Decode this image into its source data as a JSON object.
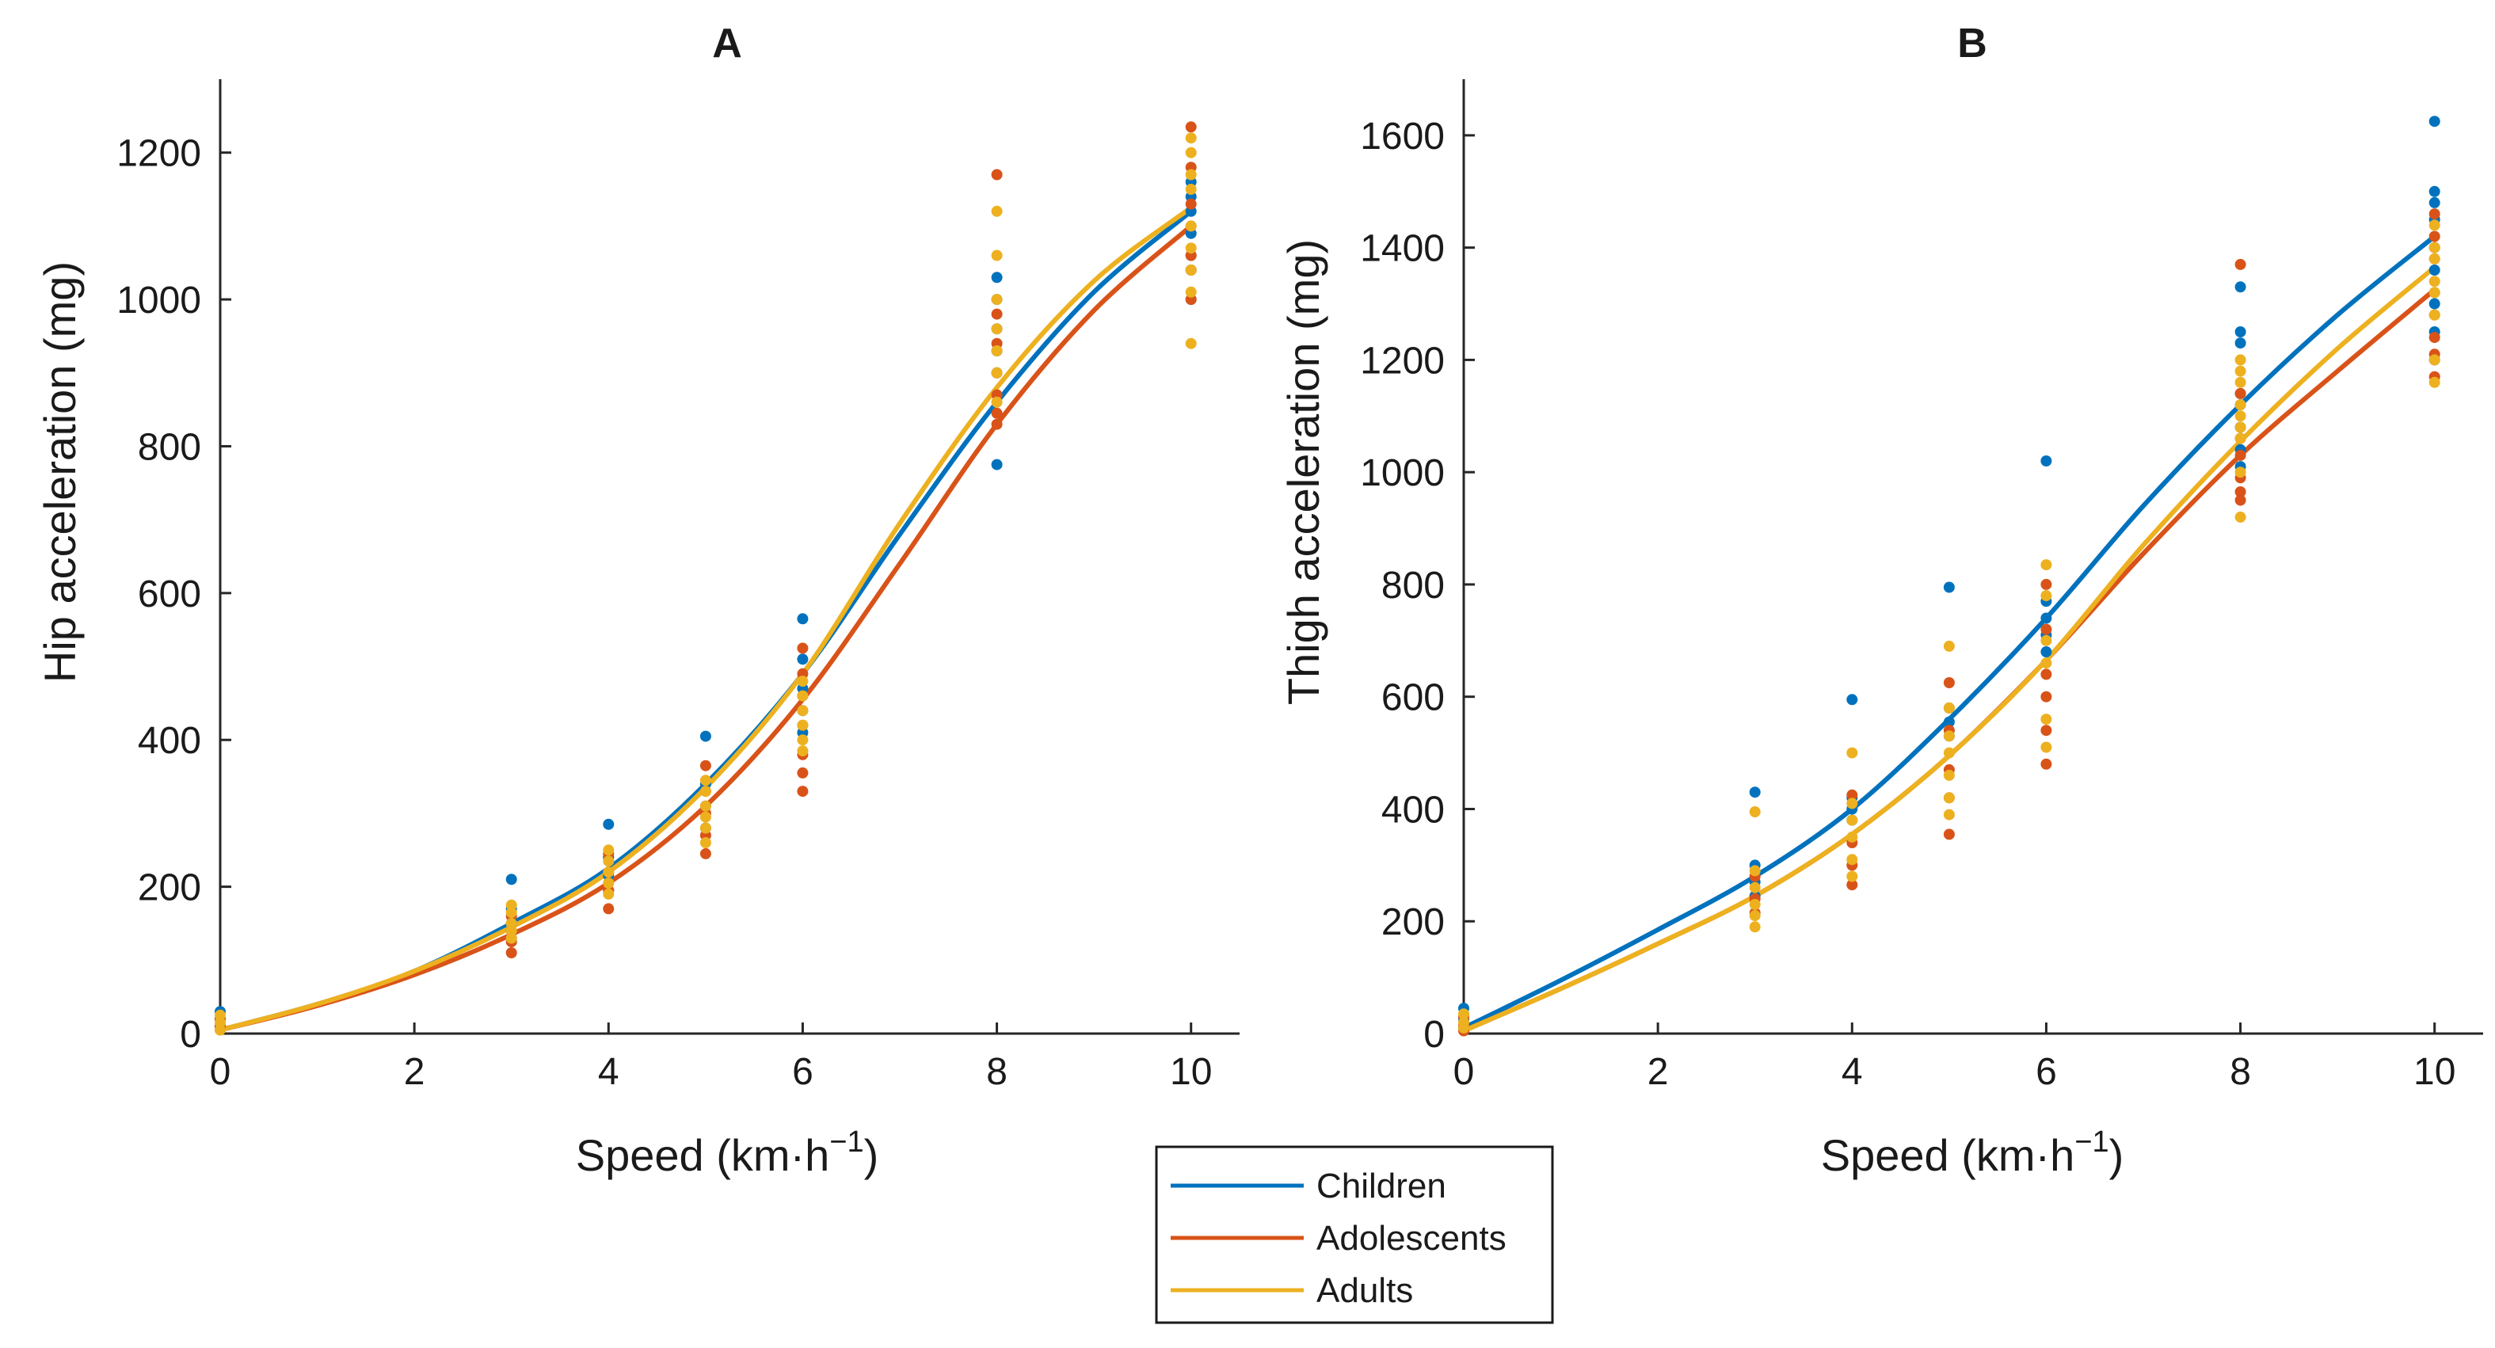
{
  "colors": {
    "Children": "#0072BD",
    "Adolescents": "#D95319",
    "Adults": "#EDB120"
  },
  "legend": {
    "entries": [
      "Children",
      "Adolescents",
      "Adults"
    ]
  },
  "chart_data": [
    {
      "type": "scatter+line",
      "title": "A",
      "xlabel": "Speed (km·h",
      "xlabel_sup": "−1",
      "xlabel_end": ")",
      "ylabel": "Hip acceleration (mg)",
      "xlim": [
        0,
        10.5
      ],
      "ylim": [
        0,
        1300
      ],
      "xticks": [
        0,
        2,
        4,
        6,
        8,
        10
      ],
      "yticks": [
        0,
        200,
        400,
        600,
        800,
        1000,
        1200
      ],
      "scatter": {
        "Children": [
          [
            0,
            30
          ],
          [
            0,
            20
          ],
          [
            0,
            10
          ],
          [
            3,
            210
          ],
          [
            3,
            170
          ],
          [
            3,
            150
          ],
          [
            3,
            130
          ],
          [
            4,
            285
          ],
          [
            4,
            240
          ],
          [
            4,
            215
          ],
          [
            4,
            195
          ],
          [
            5,
            405
          ],
          [
            5,
            340
          ],
          [
            5,
            310
          ],
          [
            5,
            280
          ],
          [
            6,
            565
          ],
          [
            6,
            510
          ],
          [
            6,
            470
          ],
          [
            6,
            440
          ],
          [
            6,
            410
          ],
          [
            8,
            1030
          ],
          [
            8,
            1000
          ],
          [
            8,
            960
          ],
          [
            8,
            930
          ],
          [
            8,
            900
          ],
          [
            8,
            775
          ],
          [
            10,
            1160
          ],
          [
            10,
            1140
          ],
          [
            10,
            1120
          ],
          [
            10,
            1090
          ],
          [
            10,
            1060
          ],
          [
            10,
            1040
          ],
          [
            10,
            1000
          ]
        ],
        "Adolescents": [
          [
            0,
            20
          ],
          [
            0,
            10
          ],
          [
            0,
            5
          ],
          [
            3,
            160
          ],
          [
            3,
            140
          ],
          [
            3,
            125
          ],
          [
            3,
            110
          ],
          [
            4,
            245
          ],
          [
            4,
            220
          ],
          [
            4,
            195
          ],
          [
            4,
            170
          ],
          [
            5,
            365
          ],
          [
            5,
            330
          ],
          [
            5,
            300
          ],
          [
            5,
            270
          ],
          [
            5,
            245
          ],
          [
            6,
            525
          ],
          [
            6,
            490
          ],
          [
            6,
            460
          ],
          [
            6,
            420
          ],
          [
            6,
            380
          ],
          [
            6,
            355
          ],
          [
            6,
            330
          ],
          [
            8,
            1170
          ],
          [
            8,
            980
          ],
          [
            8,
            940
          ],
          [
            8,
            900
          ],
          [
            8,
            870
          ],
          [
            8,
            845
          ],
          [
            8,
            830
          ],
          [
            10,
            1235
          ],
          [
            10,
            1180
          ],
          [
            10,
            1130
          ],
          [
            10,
            1100
          ],
          [
            10,
            1060
          ],
          [
            10,
            1040
          ],
          [
            10,
            1000
          ]
        ],
        "Adults": [
          [
            0,
            25
          ],
          [
            0,
            15
          ],
          [
            0,
            5
          ],
          [
            3,
            175
          ],
          [
            3,
            165
          ],
          [
            3,
            150
          ],
          [
            3,
            140
          ],
          [
            3,
            130
          ],
          [
            4,
            250
          ],
          [
            4,
            235
          ],
          [
            4,
            220
          ],
          [
            4,
            205
          ],
          [
            4,
            190
          ],
          [
            5,
            345
          ],
          [
            5,
            330
          ],
          [
            5,
            310
          ],
          [
            5,
            295
          ],
          [
            5,
            280
          ],
          [
            5,
            260
          ],
          [
            6,
            480
          ],
          [
            6,
            460
          ],
          [
            6,
            440
          ],
          [
            6,
            420
          ],
          [
            6,
            400
          ],
          [
            6,
            385
          ],
          [
            8,
            1120
          ],
          [
            8,
            1060
          ],
          [
            8,
            1000
          ],
          [
            8,
            960
          ],
          [
            8,
            930
          ],
          [
            8,
            900
          ],
          [
            8,
            860
          ],
          [
            10,
            1220
          ],
          [
            10,
            1200
          ],
          [
            10,
            1170
          ],
          [
            10,
            1150
          ],
          [
            10,
            1100
          ],
          [
            10,
            1070
          ],
          [
            10,
            1040
          ],
          [
            10,
            1010
          ],
          [
            10,
            940
          ]
        ]
      },
      "fits": {
        "Children": [
          [
            0,
            5
          ],
          [
            1,
            40
          ],
          [
            2,
            85
          ],
          [
            3,
            150
          ],
          [
            4,
            225
          ],
          [
            5,
            340
          ],
          [
            6,
            490
          ],
          [
            7,
            680
          ],
          [
            8,
            860
          ],
          [
            9,
            1010
          ],
          [
            10,
            1120
          ]
        ],
        "Adolescents": [
          [
            0,
            5
          ],
          [
            1,
            38
          ],
          [
            2,
            80
          ],
          [
            3,
            135
          ],
          [
            4,
            205
          ],
          [
            5,
            310
          ],
          [
            6,
            455
          ],
          [
            7,
            640
          ],
          [
            8,
            830
          ],
          [
            9,
            985
          ],
          [
            10,
            1100
          ]
        ],
        "Adults": [
          [
            0,
            5
          ],
          [
            1,
            40
          ],
          [
            2,
            85
          ],
          [
            3,
            145
          ],
          [
            4,
            220
          ],
          [
            5,
            335
          ],
          [
            6,
            490
          ],
          [
            7,
            695
          ],
          [
            8,
            880
          ],
          [
            9,
            1025
          ],
          [
            10,
            1125
          ]
        ]
      }
    },
    {
      "type": "scatter+line",
      "title": "B",
      "xlabel": "Speed (km·h",
      "xlabel_sup": "−1",
      "xlabel_end": ")",
      "ylabel": "Thigh acceleration (mg)",
      "xlim": [
        0,
        10.5
      ],
      "ylim": [
        0,
        1700
      ],
      "xticks": [
        0,
        2,
        4,
        6,
        8,
        10
      ],
      "yticks": [
        0,
        200,
        400,
        600,
        800,
        1000,
        1200,
        1400,
        1600
      ],
      "scatter": {
        "Children": [
          [
            0,
            45
          ],
          [
            0,
            25
          ],
          [
            0,
            10
          ],
          [
            3,
            430
          ],
          [
            3,
            300
          ],
          [
            3,
            270
          ],
          [
            3,
            245
          ],
          [
            4,
            595
          ],
          [
            4,
            420
          ],
          [
            4,
            400
          ],
          [
            4,
            380
          ],
          [
            5,
            795
          ],
          [
            5,
            580
          ],
          [
            5,
            555
          ],
          [
            5,
            530
          ],
          [
            6,
            1020
          ],
          [
            6,
            770
          ],
          [
            6,
            740
          ],
          [
            6,
            710
          ],
          [
            6,
            680
          ],
          [
            8,
            1330
          ],
          [
            8,
            1250
          ],
          [
            8,
            1230
          ],
          [
            8,
            1140
          ],
          [
            8,
            1120
          ],
          [
            8,
            1080
          ],
          [
            8,
            1040
          ],
          [
            8,
            1010
          ],
          [
            10,
            1625
          ],
          [
            10,
            1500
          ],
          [
            10,
            1480
          ],
          [
            10,
            1450
          ],
          [
            10,
            1400
          ],
          [
            10,
            1360
          ],
          [
            10,
            1300
          ],
          [
            10,
            1250
          ],
          [
            10,
            1200
          ]
        ],
        "Adolescents": [
          [
            0,
            30
          ],
          [
            0,
            15
          ],
          [
            0,
            5
          ],
          [
            3,
            280
          ],
          [
            3,
            240
          ],
          [
            3,
            215
          ],
          [
            4,
            425
          ],
          [
            4,
            340
          ],
          [
            4,
            300
          ],
          [
            4,
            265
          ],
          [
            5,
            625
          ],
          [
            5,
            540
          ],
          [
            5,
            470
          ],
          [
            5,
            420
          ],
          [
            5,
            355
          ],
          [
            6,
            800
          ],
          [
            6,
            720
          ],
          [
            6,
            640
          ],
          [
            6,
            600
          ],
          [
            6,
            540
          ],
          [
            6,
            480
          ],
          [
            8,
            1370
          ],
          [
            8,
            1140
          ],
          [
            8,
            1060
          ],
          [
            8,
            1030
          ],
          [
            8,
            990
          ],
          [
            8,
            965
          ],
          [
            8,
            950
          ],
          [
            10,
            1460
          ],
          [
            10,
            1420
          ],
          [
            10,
            1380
          ],
          [
            10,
            1320
          ],
          [
            10,
            1280
          ],
          [
            10,
            1240
          ],
          [
            10,
            1210
          ],
          [
            10,
            1170
          ]
        ],
        "Adults": [
          [
            0,
            35
          ],
          [
            0,
            20
          ],
          [
            0,
            10
          ],
          [
            3,
            395
          ],
          [
            3,
            290
          ],
          [
            3,
            260
          ],
          [
            3,
            230
          ],
          [
            3,
            210
          ],
          [
            3,
            190
          ],
          [
            4,
            500
          ],
          [
            4,
            410
          ],
          [
            4,
            380
          ],
          [
            4,
            350
          ],
          [
            4,
            310
          ],
          [
            4,
            280
          ],
          [
            5,
            690
          ],
          [
            5,
            580
          ],
          [
            5,
            530
          ],
          [
            5,
            500
          ],
          [
            5,
            460
          ],
          [
            5,
            420
          ],
          [
            5,
            390
          ],
          [
            6,
            835
          ],
          [
            6,
            780
          ],
          [
            6,
            700
          ],
          [
            6,
            660
          ],
          [
            6,
            560
          ],
          [
            6,
            510
          ],
          [
            8,
            1200
          ],
          [
            8,
            1180
          ],
          [
            8,
            1160
          ],
          [
            8,
            1120
          ],
          [
            8,
            1100
          ],
          [
            8,
            1080
          ],
          [
            8,
            1060
          ],
          [
            8,
            1000
          ],
          [
            8,
            920
          ],
          [
            10,
            1440
          ],
          [
            10,
            1400
          ],
          [
            10,
            1380
          ],
          [
            10,
            1340
          ],
          [
            10,
            1320
          ],
          [
            10,
            1280
          ],
          [
            10,
            1200
          ],
          [
            10,
            1160
          ]
        ]
      },
      "fits": {
        "Children": [
          [
            0,
            10
          ],
          [
            1,
            95
          ],
          [
            2,
            185
          ],
          [
            3,
            280
          ],
          [
            4,
            400
          ],
          [
            5,
            560
          ],
          [
            6,
            740
          ],
          [
            7,
            940
          ],
          [
            8,
            1120
          ],
          [
            9,
            1280
          ],
          [
            10,
            1420
          ]
        ],
        "Adolescents": [
          [
            0,
            5
          ],
          [
            1,
            80
          ],
          [
            2,
            160
          ],
          [
            3,
            245
          ],
          [
            4,
            355
          ],
          [
            5,
            495
          ],
          [
            6,
            665
          ],
          [
            7,
            855
          ],
          [
            8,
            1030
          ],
          [
            9,
            1180
          ],
          [
            10,
            1325
          ]
        ],
        "Adults": [
          [
            0,
            5
          ],
          [
            1,
            80
          ],
          [
            2,
            160
          ],
          [
            3,
            245
          ],
          [
            4,
            355
          ],
          [
            5,
            495
          ],
          [
            6,
            665
          ],
          [
            7,
            870
          ],
          [
            8,
            1055
          ],
          [
            9,
            1220
          ],
          [
            10,
            1365
          ]
        ]
      }
    }
  ]
}
